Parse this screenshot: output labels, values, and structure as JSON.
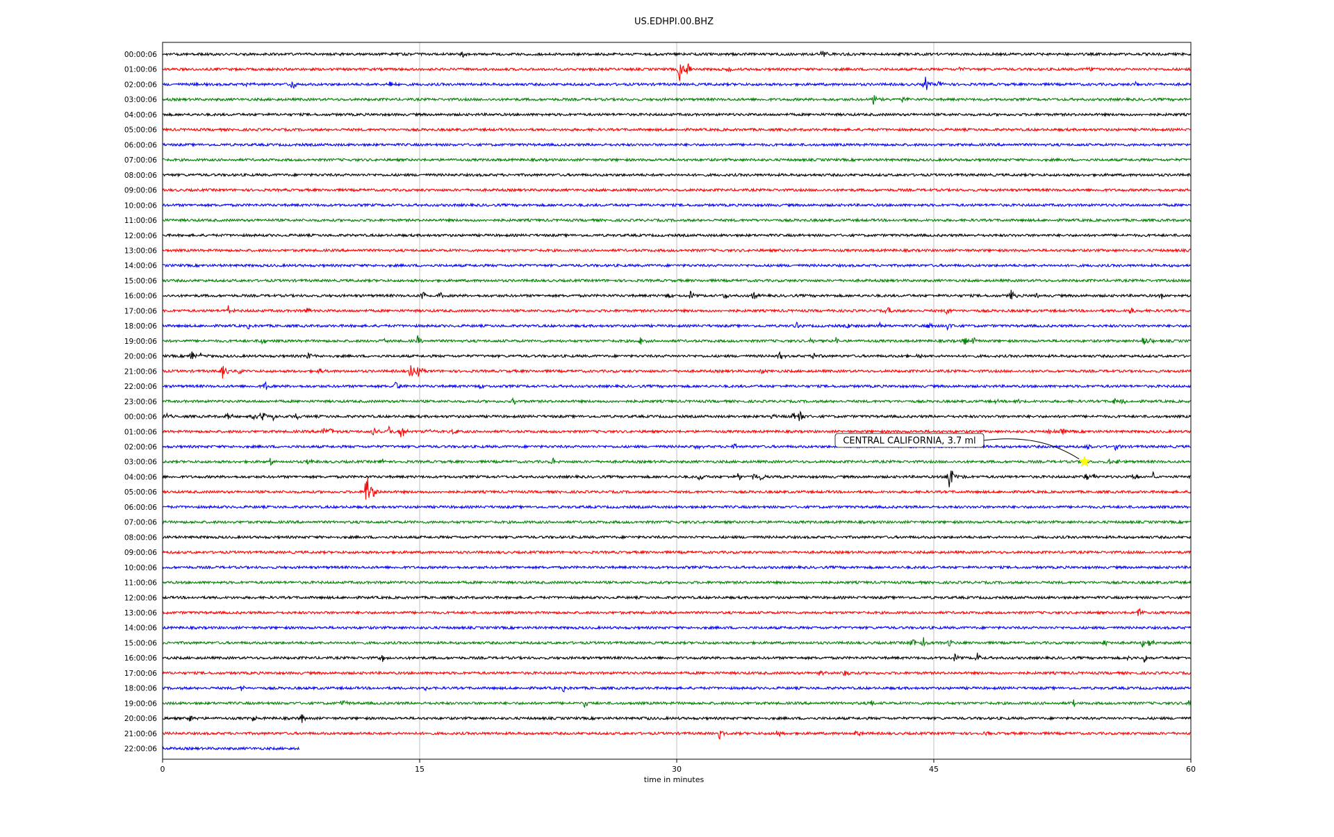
{
  "chart_data": {
    "type": "line",
    "title": "US.EDHPI.00.BHZ",
    "xlabel": "time in minutes",
    "ylabel": "",
    "xlim": [
      0,
      60
    ],
    "x_ticks": [
      0,
      15,
      30,
      45,
      60
    ],
    "x_tick_labels": [
      "0",
      "15",
      "30",
      "45",
      "60"
    ],
    "grid_x": true,
    "row_colors": [
      "#000000",
      "#ff0000",
      "#0000ff",
      "#008000"
    ],
    "rows": [
      {
        "label": "00:00:06",
        "color": "#000000",
        "end": 60,
        "events": [
          [
            17.5,
            6
          ],
          [
            38.5,
            6
          ]
        ]
      },
      {
        "label": "01:00:06",
        "color": "#ff0000",
        "end": 60,
        "events": [
          [
            30.2,
            22
          ],
          [
            30.6,
            14
          ],
          [
            33,
            4
          ],
          [
            46.5,
            4
          ],
          [
            54,
            3
          ],
          [
            54.2,
            3
          ]
        ]
      },
      {
        "label": "02:00:06",
        "color": "#0000ff",
        "end": 60,
        "events": [
          [
            2,
            5
          ],
          [
            5,
            5
          ],
          [
            7.6,
            10
          ],
          [
            13.3,
            6
          ],
          [
            44.5,
            14
          ],
          [
            45.3,
            6
          ],
          [
            56.8,
            5
          ]
        ]
      },
      {
        "label": "03:00:06",
        "color": "#008000",
        "end": 60,
        "events": [
          [
            41.5,
            10
          ],
          [
            42,
            6
          ],
          [
            43.2,
            5
          ]
        ]
      },
      {
        "label": "04:00:06",
        "color": "#000000",
        "end": 60,
        "events": []
      },
      {
        "label": "05:00:06",
        "color": "#ff0000",
        "end": 60,
        "events": []
      },
      {
        "label": "06:00:06",
        "color": "#0000ff",
        "end": 60,
        "events": []
      },
      {
        "label": "07:00:06",
        "color": "#008000",
        "end": 60,
        "events": []
      },
      {
        "label": "08:00:06",
        "color": "#000000",
        "end": 60,
        "events": []
      },
      {
        "label": "09:00:06",
        "color": "#ff0000",
        "end": 60,
        "events": []
      },
      {
        "label": "10:00:06",
        "color": "#0000ff",
        "end": 60,
        "events": []
      },
      {
        "label": "11:00:06",
        "color": "#008000",
        "end": 60,
        "events": []
      },
      {
        "label": "12:00:06",
        "color": "#000000",
        "end": 60,
        "events": []
      },
      {
        "label": "13:00:06",
        "color": "#ff0000",
        "end": 60,
        "events": []
      },
      {
        "label": "14:00:06",
        "color": "#0000ff",
        "end": 60,
        "events": []
      },
      {
        "label": "15:00:06",
        "color": "#008000",
        "end": 60,
        "events": []
      },
      {
        "label": "16:00:06",
        "color": "#000000",
        "end": 60,
        "events": [
          [
            15.2,
            10
          ],
          [
            16.2,
            6
          ],
          [
            29.5,
            5
          ],
          [
            30.8,
            6
          ],
          [
            32.8,
            6
          ],
          [
            34.5,
            8
          ],
          [
            49.5,
            10
          ],
          [
            51,
            5
          ],
          [
            58.3,
            6
          ]
        ]
      },
      {
        "label": "17:00:06",
        "color": "#ff0000",
        "end": 60,
        "events": [
          [
            3.8,
            8
          ],
          [
            8.4,
            6
          ],
          [
            38.9,
            4
          ],
          [
            42.3,
            7
          ],
          [
            45.8,
            8
          ],
          [
            56.5,
            8
          ]
        ]
      },
      {
        "label": "18:00:06",
        "color": "#0000ff",
        "end": 60,
        "events": [
          [
            5,
            4
          ],
          [
            37,
            5
          ],
          [
            40,
            5
          ],
          [
            41.8,
            8
          ],
          [
            44.7,
            5
          ],
          [
            45.8,
            7
          ]
        ]
      },
      {
        "label": "19:00:06",
        "color": "#008000",
        "end": 60,
        "events": [
          [
            5.8,
            5
          ],
          [
            12.8,
            6
          ],
          [
            14.9,
            8
          ],
          [
            27.9,
            6
          ],
          [
            37.8,
            5
          ],
          [
            39.3,
            6
          ],
          [
            46.8,
            6
          ],
          [
            47.3,
            6
          ],
          [
            57.2,
            10
          ],
          [
            57.6,
            8
          ]
        ]
      },
      {
        "label": "20:00:06",
        "color": "#000000",
        "end": 60,
        "events": [
          [
            1.7,
            10
          ],
          [
            2.2,
            8
          ],
          [
            8.5,
            5
          ],
          [
            36,
            6
          ],
          [
            38,
            5
          ],
          [
            43.5,
            5
          ],
          [
            44,
            5
          ]
        ]
      },
      {
        "label": "21:00:06",
        "color": "#ff0000",
        "end": 60,
        "events": [
          [
            3.5,
            14
          ],
          [
            4.5,
            5
          ],
          [
            9.2,
            6
          ],
          [
            14.5,
            12
          ],
          [
            14.9,
            10
          ],
          [
            35,
            4
          ],
          [
            51.2,
            3
          ]
        ]
      },
      {
        "label": "22:00:06",
        "color": "#0000ff",
        "end": 60,
        "events": [
          [
            6,
            6
          ],
          [
            13.6,
            8
          ],
          [
            18.5,
            5
          ]
        ]
      },
      {
        "label": "23:00:06",
        "color": "#008000",
        "end": 60,
        "events": [
          [
            20.5,
            6
          ],
          [
            48.5,
            5
          ],
          [
            49.8,
            5
          ],
          [
            55.5,
            5
          ],
          [
            56,
            7
          ]
        ]
      },
      {
        "label": "00:00:06",
        "color": "#000000",
        "end": 60,
        "events": [
          [
            0.2,
            6
          ],
          [
            3.8,
            6
          ],
          [
            5.3,
            7
          ],
          [
            5.8,
            9
          ],
          [
            6.5,
            6
          ],
          [
            7.8,
            5
          ],
          [
            35.5,
            6
          ],
          [
            36.8,
            6
          ],
          [
            37.2,
            10
          ]
        ]
      },
      {
        "label": "01:00:06",
        "color": "#ff0000",
        "end": 60,
        "events": [
          [
            9.3,
            10
          ],
          [
            9.8,
            6
          ],
          [
            12.3,
            8
          ],
          [
            13.2,
            10
          ],
          [
            13.9,
            14
          ],
          [
            15.5,
            5
          ],
          [
            16.9,
            6
          ],
          [
            51.8,
            7
          ],
          [
            52.5,
            5
          ]
        ]
      },
      {
        "label": "02:00:06",
        "color": "#0000ff",
        "end": 60,
        "events": [
          [
            31.2,
            4
          ],
          [
            33.3,
            5
          ],
          [
            54,
            4
          ],
          [
            55.6,
            5
          ]
        ]
      },
      {
        "label": "03:00:06",
        "color": "#008000",
        "end": 60,
        "events": [
          [
            6.3,
            5
          ],
          [
            8.5,
            5
          ],
          [
            12.8,
            5
          ],
          [
            22.8,
            6
          ],
          [
            55.3,
            6
          ],
          [
            55.8,
            5
          ]
        ]
      },
      {
        "label": "04:00:06",
        "color": "#000000",
        "end": 60,
        "events": [
          [
            31.3,
            7
          ],
          [
            33.6,
            7
          ],
          [
            34.5,
            6
          ],
          [
            34.9,
            6
          ],
          [
            45.9,
            28
          ],
          [
            46.4,
            8
          ],
          [
            53.8,
            8
          ],
          [
            54.3,
            6
          ],
          [
            56.7,
            8
          ],
          [
            57.8,
            6
          ]
        ]
      },
      {
        "label": "05:00:06",
        "color": "#ff0000",
        "end": 60,
        "events": [
          [
            11.9,
            38
          ],
          [
            12.3,
            10
          ]
        ]
      },
      {
        "label": "06:00:06",
        "color": "#0000ff",
        "end": 60,
        "events": []
      },
      {
        "label": "07:00:06",
        "color": "#008000",
        "end": 60,
        "events": []
      },
      {
        "label": "08:00:06",
        "color": "#000000",
        "end": 60,
        "events": []
      },
      {
        "label": "09:00:06",
        "color": "#ff0000",
        "end": 60,
        "events": []
      },
      {
        "label": "10:00:06",
        "color": "#0000ff",
        "end": 60,
        "events": []
      },
      {
        "label": "11:00:06",
        "color": "#008000",
        "end": 60,
        "events": []
      },
      {
        "label": "12:00:06",
        "color": "#000000",
        "end": 60,
        "events": []
      },
      {
        "label": "13:00:06",
        "color": "#ff0000",
        "end": 60,
        "events": [
          [
            57,
            8
          ]
        ]
      },
      {
        "label": "14:00:06",
        "color": "#0000ff",
        "end": 60,
        "events": []
      },
      {
        "label": "15:00:06",
        "color": "#008000",
        "end": 60,
        "events": [
          [
            43.7,
            10
          ],
          [
            44.4,
            8
          ],
          [
            45.9,
            5
          ],
          [
            55,
            5
          ],
          [
            57.2,
            7
          ],
          [
            57.6,
            7
          ]
        ]
      },
      {
        "label": "16:00:06",
        "color": "#000000",
        "end": 60,
        "events": [
          [
            12.8,
            6
          ],
          [
            46.2,
            6
          ],
          [
            47.5,
            8
          ],
          [
            56.3,
            5
          ],
          [
            57.3,
            6
          ]
        ]
      },
      {
        "label": "17:00:06",
        "color": "#ff0000",
        "end": 60,
        "events": [
          [
            38.3,
            5
          ],
          [
            39.8,
            6
          ]
        ]
      },
      {
        "label": "18:00:06",
        "color": "#0000ff",
        "end": 60,
        "events": [
          [
            4.6,
            5
          ],
          [
            15.3,
            4
          ],
          [
            23.4,
            5
          ]
        ]
      },
      {
        "label": "19:00:06",
        "color": "#008000",
        "end": 60,
        "events": [
          [
            10.5,
            6
          ],
          [
            24.6,
            6
          ],
          [
            41.3,
            6
          ],
          [
            53.2,
            5
          ],
          [
            59.9,
            8
          ]
        ]
      },
      {
        "label": "20:00:06",
        "color": "#000000",
        "end": 60,
        "events": [
          [
            1.6,
            6
          ],
          [
            5.3,
            5
          ],
          [
            8.1,
            7
          ],
          [
            28.1,
            5
          ]
        ]
      },
      {
        "label": "21:00:06",
        "color": "#ff0000",
        "end": 60,
        "events": [
          [
            32.5,
            7
          ],
          [
            35.9,
            7
          ],
          [
            40.5,
            6
          ],
          [
            48,
            4
          ]
        ]
      },
      {
        "label": "22:00:06",
        "color": "#0000ff",
        "end": 8,
        "events": []
      }
    ],
    "event_annotation": {
      "text": "CENTRAL CALIFORNIA, 3.7 ml",
      "row_index": 27,
      "time_minutes": 53.8,
      "marker": "star",
      "marker_color": "#ffff00"
    }
  }
}
